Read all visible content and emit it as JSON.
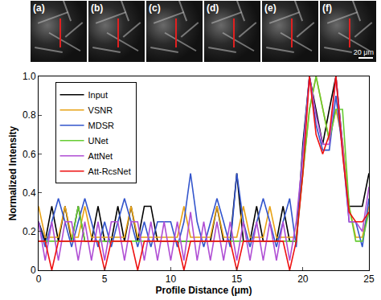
{
  "panels": {
    "labels": [
      "(a)",
      "(b)",
      "(c)",
      "(d)",
      "(e)",
      "(f)"
    ],
    "scale_bar": "20 μm"
  },
  "chart_data": {
    "type": "line",
    "x_label": "Profile Distance (μm)",
    "y_label": "Normalized Intensity",
    "x": [
      0,
      0.5,
      1,
      1.5,
      2,
      2.5,
      3,
      3.5,
      4,
      4.5,
      5,
      5.5,
      6,
      6.5,
      7,
      7.5,
      8,
      8.5,
      9,
      9.5,
      10,
      10.5,
      11,
      11.5,
      12,
      12.5,
      13,
      13.5,
      14,
      14.5,
      15,
      15.5,
      16,
      16.5,
      17,
      17.5,
      18,
      18.5,
      19,
      19.5,
      20,
      20.5,
      21,
      21.5,
      22,
      22.5,
      23,
      23.5,
      24,
      24.5,
      25
    ],
    "series": [
      {
        "name": "Input",
        "color": "#000000",
        "values": [
          0.25,
          0.15,
          0.33,
          0.15,
          0.33,
          0.15,
          0.33,
          0.15,
          0.15,
          0.33,
          0.15,
          0.15,
          0.33,
          0.15,
          0.33,
          0.15,
          0.33,
          0.33,
          0.15,
          0.15,
          0.15,
          0.15,
          0.15,
          0.15,
          0.15,
          0.15,
          0.15,
          0.33,
          0.15,
          0.15,
          0.5,
          0.15,
          0.15,
          0.33,
          0.15,
          0.15,
          0.15,
          0.33,
          0.15,
          0.15,
          0.65,
          1.0,
          0.83,
          0.65,
          0.83,
          1.0,
          0.65,
          0.33,
          0.33,
          0.33,
          0.5
        ]
      },
      {
        "name": "VSNR",
        "color": "#e8a317",
        "values": [
          0.33,
          0.17,
          0.17,
          0.17,
          0.33,
          0.17,
          0.17,
          0.33,
          0.17,
          0.17,
          0.17,
          0.17,
          0.17,
          0.17,
          0.33,
          0.17,
          0.17,
          0.17,
          0.17,
          0.17,
          0.17,
          0.17,
          0.33,
          0.17,
          0.17,
          0.17,
          0.17,
          0.33,
          0.17,
          0.17,
          0.17,
          0.33,
          0.17,
          0.17,
          0.17,
          0.33,
          0.17,
          0.17,
          0.17,
          0.17,
          0.5,
          0.83,
          1.0,
          0.83,
          0.67,
          0.83,
          0.67,
          0.33,
          0.17,
          0.17,
          0.33
        ]
      },
      {
        "name": "MDSR",
        "color": "#3355cc",
        "values": [
          0.25,
          0.12,
          0.25,
          0.37,
          0.25,
          0.12,
          0.25,
          0.37,
          0.25,
          0.12,
          0.25,
          0.12,
          0.25,
          0.37,
          0.25,
          0.12,
          0.25,
          0.12,
          0.25,
          0.25,
          0.25,
          0.12,
          0.25,
          0.5,
          0.25,
          0.12,
          0.25,
          0.37,
          0.25,
          0.12,
          0.5,
          0.25,
          0.12,
          0.25,
          0.37,
          0.25,
          0.12,
          0.25,
          0.37,
          0.12,
          0.62,
          1.0,
          0.75,
          0.62,
          0.62,
          0.9,
          0.62,
          0.25,
          0.25,
          0.12,
          0.37
        ]
      },
      {
        "name": "UNet",
        "color": "#66cc33",
        "values": [
          0.15,
          0.15,
          0.15,
          0.15,
          0.15,
          0.15,
          0.33,
          0.15,
          0.15,
          0.15,
          0.15,
          0.15,
          0.15,
          0.15,
          0.15,
          0.15,
          0.15,
          0.15,
          0.15,
          0.15,
          0.15,
          0.15,
          0.15,
          0.15,
          0.15,
          0.15,
          0.15,
          0.15,
          0.15,
          0.15,
          0.15,
          0.15,
          0.15,
          0.15,
          0.15,
          0.15,
          0.15,
          0.15,
          0.15,
          0.15,
          0.5,
          0.83,
          1.0,
          0.83,
          0.67,
          0.83,
          0.83,
          0.33,
          0.15,
          0.15,
          0.3
        ]
      },
      {
        "name": "AttNet",
        "color": "#b04fd4",
        "values": [
          0.25,
          0.05,
          0.25,
          0.05,
          0.25,
          0.25,
          0.05,
          0.25,
          0.05,
          0.25,
          0.05,
          0.25,
          0.25,
          0.05,
          0.25,
          0.25,
          0.05,
          0.25,
          0.05,
          0.25,
          0.05,
          0.25,
          0.05,
          0.3,
          0.05,
          0.25,
          0.05,
          0.25,
          0.05,
          0.25,
          0.05,
          0.25,
          0.05,
          0.25,
          0.05,
          0.25,
          0.05,
          0.25,
          0.05,
          0.25,
          0.6,
          1.0,
          0.8,
          0.65,
          0.65,
          1.0,
          0.65,
          0.25,
          0.25,
          0.2,
          0.43
        ]
      },
      {
        "name": "Att-RcsNet",
        "color": "#ee1111",
        "values": [
          0.15,
          0.15,
          0,
          0.15,
          0.15,
          0.15,
          0.15,
          0.15,
          0.15,
          0.15,
          0,
          0.15,
          0.15,
          0.15,
          0.15,
          0,
          0.15,
          0.15,
          0.15,
          0.15,
          0.15,
          0.15,
          0,
          0.15,
          0.15,
          0.15,
          0.15,
          0.15,
          0.15,
          0.15,
          0,
          0.15,
          0.15,
          0.15,
          0.15,
          0.15,
          0.15,
          0.15,
          0,
          0.15,
          0.5,
          1.0,
          0.7,
          0.6,
          0.7,
          1.0,
          0.6,
          0.3,
          0.25,
          0.25,
          0.3
        ]
      }
    ],
    "xlim": [
      0,
      25
    ],
    "xticks": [
      0,
      5,
      10,
      15,
      20,
      25
    ],
    "ylim": [
      0,
      1
    ],
    "yticks": [
      0,
      0.2,
      0.4,
      0.6,
      0.8,
      {
        "value": 1,
        "label": "1.0"
      }
    ],
    "grid": false,
    "legend": "upper left"
  }
}
